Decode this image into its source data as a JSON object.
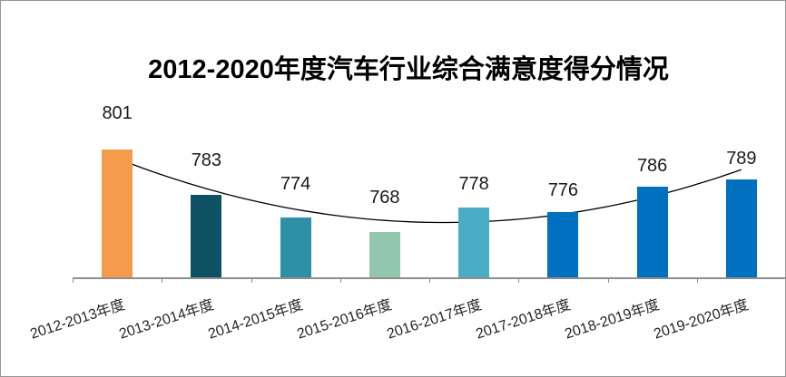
{
  "title": "2012-2020年度汽车行业综合满意度得分情况",
  "chart_data": {
    "type": "bar",
    "title": "2012-2020年度汽车行业综合满意度得分情况",
    "categories": [
      "2012-2013年度",
      "2013-2014年度",
      "2014-2015年度",
      "2015-2016年度",
      "2016-2017年度",
      "2017-2018年度",
      "2018-2019年度",
      "2019-2020年度"
    ],
    "values": [
      801,
      783,
      774,
      768,
      778,
      776,
      786,
      789
    ],
    "bar_colors": [
      "#F59B4C",
      "#0E5165",
      "#2D90A6",
      "#93C6AE",
      "#4BACC6",
      "#0070C0",
      "#0070C0",
      "#0070C0"
    ],
    "data_labels": true,
    "xlabel": "",
    "ylabel": "",
    "ylim": [
      750,
      810
    ],
    "y_axis_visible": false,
    "gridlines": false,
    "legend": "none",
    "category_label_rotation": "diagonal",
    "trendline": {
      "type": "polynomial",
      "order": 2,
      "color": "#000000",
      "applies_to": "values"
    },
    "axis_color": "#8E8E8E",
    "frame_border_color": "#969696",
    "background_color": "#FFFFFF"
  }
}
